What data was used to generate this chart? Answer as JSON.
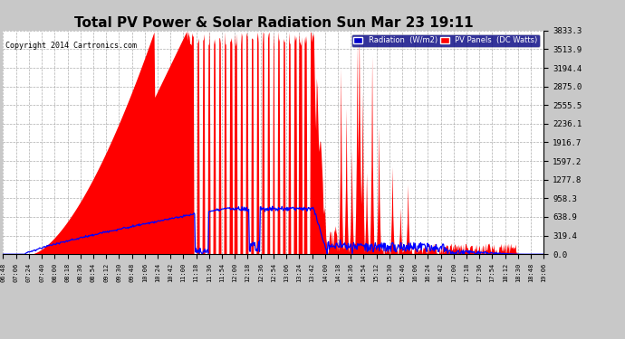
{
  "title": "Total PV Power & Solar Radiation Sun Mar 23 19:11",
  "copyright": "Copyright 2014 Cartronics.com",
  "ylabel_right_values": [
    0.0,
    319.4,
    638.9,
    958.3,
    1277.8,
    1597.2,
    1916.7,
    2236.1,
    2555.5,
    2875.0,
    3194.4,
    3513.9,
    3833.3
  ],
  "ymax": 3833.3,
  "bg_color": "#c8c8c8",
  "plot_bg_color": "#ffffff",
  "grid_color": "#999999",
  "pv_color": "#ff0000",
  "radiation_color": "#0000ff",
  "title_fontsize": 11,
  "tick_labels": [
    "06:48",
    "07:06",
    "07:24",
    "07:40",
    "08:00",
    "08:18",
    "08:36",
    "08:54",
    "09:12",
    "09:30",
    "09:48",
    "10:06",
    "10:24",
    "10:42",
    "11:00",
    "11:18",
    "11:36",
    "11:54",
    "12:00",
    "12:18",
    "12:36",
    "12:54",
    "13:06",
    "13:24",
    "13:42",
    "14:00",
    "14:18",
    "14:36",
    "14:54",
    "15:12",
    "15:30",
    "15:46",
    "16:06",
    "16:24",
    "16:42",
    "17:00",
    "17:18",
    "17:36",
    "17:54",
    "18:12",
    "18:30",
    "18:48",
    "19:06"
  ]
}
